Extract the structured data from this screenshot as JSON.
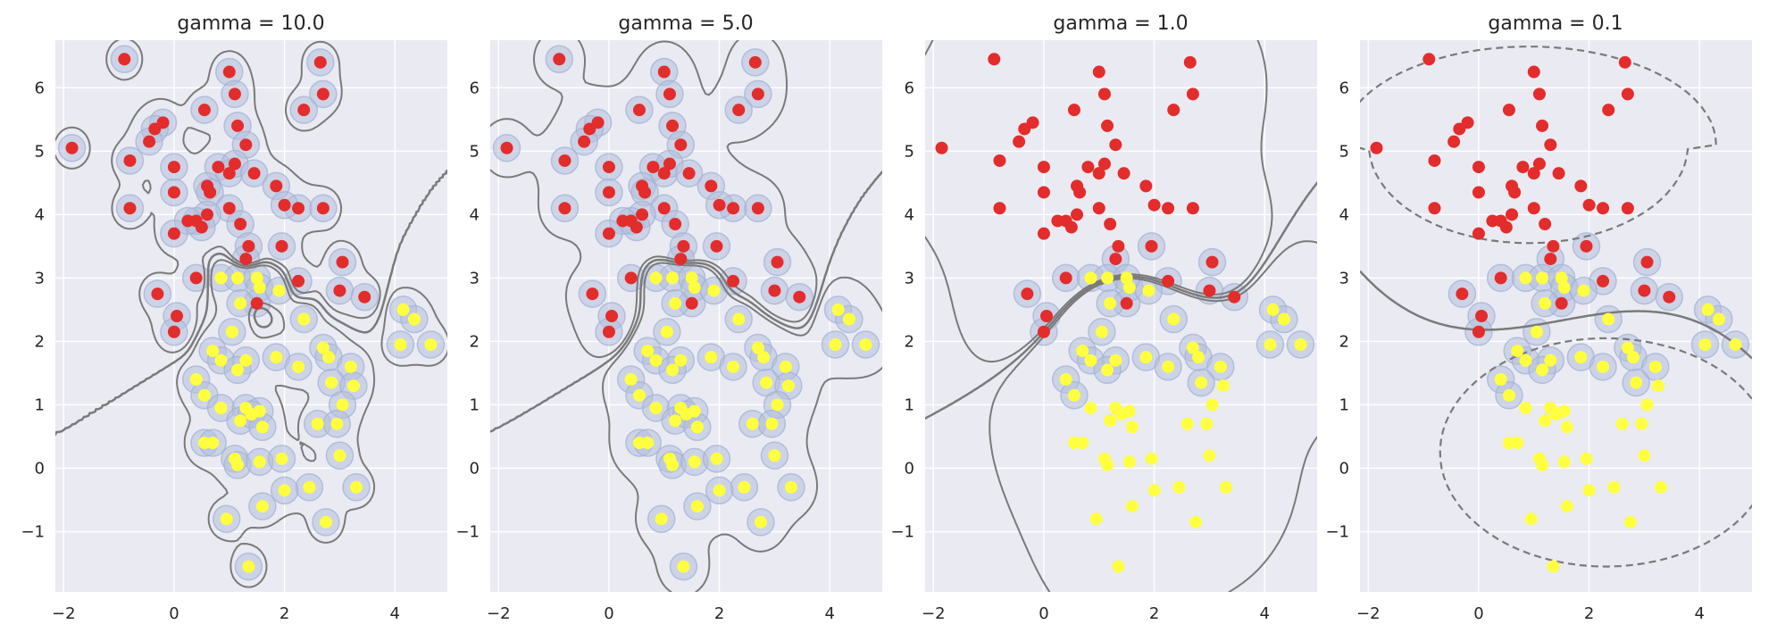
{
  "colors": {
    "axes_bg": "#eaeaf2",
    "grid": "#ffffff",
    "class_0": "#e32c2c",
    "class_1": "#ffff40",
    "support_vector_ring": "#b4c0dc",
    "boundary": "#7a7a7a",
    "text": "#262626"
  },
  "chart_data": [
    {
      "type": "scatter",
      "title": "gamma = 10.0",
      "xlim": [
        -2.15,
        4.95
      ],
      "ylim": [
        -1.95,
        6.75
      ],
      "xticks": [
        -2,
        0,
        2,
        4
      ],
      "yticks": [
        -1,
        0,
        1,
        2,
        3,
        4,
        5,
        6
      ],
      "grid": true,
      "support_vectors": "all points",
      "decision_boundary": "highly irregular solid curve",
      "margins": "dashed, tightly wrapped around individual points"
    },
    {
      "type": "scatter",
      "title": "gamma = 5.0",
      "xlim": [
        -2.15,
        4.95
      ],
      "ylim": [
        -1.95,
        6.75
      ],
      "xticks": [
        -2,
        0,
        2,
        4
      ],
      "yticks": [
        -1,
        0,
        1,
        2,
        3,
        4,
        5,
        6
      ],
      "grid": true,
      "support_vectors": "all points",
      "decision_boundary": "irregular solid curve",
      "margins": "dashed, short segments between neighbouring points"
    },
    {
      "type": "scatter",
      "title": "gamma = 1.0",
      "xlim": [
        -2.15,
        4.95
      ],
      "ylim": [
        -1.95,
        6.75
      ],
      "xticks": [
        -2,
        0,
        2,
        4
      ],
      "yticks": [
        -1,
        0,
        1,
        2,
        3,
        4,
        5,
        6
      ],
      "grid": true,
      "support_vectors": "points near the class boundary",
      "decision_boundary": "smooth S-shaped solid curve",
      "margins": "dashed, enclosing each class cloud"
    },
    {
      "type": "scatter",
      "title": "gamma = 0.1",
      "xlim": [
        -2.15,
        4.95
      ],
      "ylim": [
        -1.95,
        6.75
      ],
      "xticks": [
        -2,
        0,
        2,
        4
      ],
      "yticks": [
        -1,
        0,
        1,
        2,
        3,
        4,
        5,
        6
      ],
      "grid": true,
      "support_vectors": "points near the class boundary",
      "decision_boundary": "nearly straight solid curve",
      "margins": "dashed, two smooth loops around the classes"
    }
  ],
  "points": {
    "class_0": [
      [
        -0.9,
        6.45
      ],
      [
        1.0,
        6.25
      ],
      [
        2.65,
        6.4
      ],
      [
        1.1,
        5.9
      ],
      [
        2.7,
        5.9
      ],
      [
        0.55,
        5.65
      ],
      [
        2.35,
        5.65
      ],
      [
        -0.2,
        5.45
      ],
      [
        -0.35,
        5.35
      ],
      [
        -0.45,
        5.15
      ],
      [
        1.15,
        5.4
      ],
      [
        1.3,
        5.1
      ],
      [
        -1.85,
        5.05
      ],
      [
        -0.8,
        4.85
      ],
      [
        0.0,
        4.75
      ],
      [
        0.8,
        4.75
      ],
      [
        1.0,
        4.65
      ],
      [
        1.1,
        4.8
      ],
      [
        1.45,
        4.65
      ],
      [
        0.6,
        4.45
      ],
      [
        0.65,
        4.35
      ],
      [
        0.0,
        4.35
      ],
      [
        1.85,
        4.45
      ],
      [
        2.25,
        4.1
      ],
      [
        1.0,
        4.1
      ],
      [
        2.7,
        4.1
      ],
      [
        2.0,
        4.15
      ],
      [
        -0.8,
        4.1
      ],
      [
        0.6,
        4.0
      ],
      [
        0.4,
        3.9
      ],
      [
        0.5,
        3.8
      ],
      [
        0.25,
        3.9
      ],
      [
        1.2,
        3.85
      ],
      [
        0.0,
        3.7
      ],
      [
        1.35,
        3.5
      ],
      [
        1.95,
        3.5
      ],
      [
        1.3,
        3.3
      ],
      [
        3.05,
        3.25
      ],
      [
        0.4,
        3.0
      ],
      [
        2.25,
        2.95
      ],
      [
        3.0,
        2.8
      ],
      [
        3.45,
        2.7
      ],
      [
        -0.3,
        2.75
      ],
      [
        1.5,
        2.6
      ],
      [
        0.05,
        2.4
      ],
      [
        0.0,
        2.15
      ]
    ],
    "class_1": [
      [
        0.85,
        3.0
      ],
      [
        1.15,
        3.0
      ],
      [
        1.5,
        3.0
      ],
      [
        1.55,
        2.85
      ],
      [
        1.9,
        2.8
      ],
      [
        1.2,
        2.6
      ],
      [
        2.35,
        2.35
      ],
      [
        4.15,
        2.5
      ],
      [
        4.35,
        2.35
      ],
      [
        1.05,
        2.15
      ],
      [
        0.7,
        1.85
      ],
      [
        1.85,
        1.75
      ],
      [
        2.7,
        1.9
      ],
      [
        2.8,
        1.75
      ],
      [
        4.1,
        1.95
      ],
      [
        4.65,
        1.95
      ],
      [
        0.85,
        1.7
      ],
      [
        1.3,
        1.7
      ],
      [
        1.15,
        1.55
      ],
      [
        2.25,
        1.6
      ],
      [
        3.2,
        1.6
      ],
      [
        2.85,
        1.35
      ],
      [
        3.25,
        1.3
      ],
      [
        0.4,
        1.4
      ],
      [
        0.55,
        1.15
      ],
      [
        0.85,
        0.95
      ],
      [
        1.3,
        0.95
      ],
      [
        1.55,
        0.9
      ],
      [
        3.05,
        1.0
      ],
      [
        1.2,
        0.75
      ],
      [
        1.4,
        0.85
      ],
      [
        1.6,
        0.65
      ],
      [
        2.6,
        0.7
      ],
      [
        2.95,
        0.7
      ],
      [
        0.55,
        0.4
      ],
      [
        0.7,
        0.4
      ],
      [
        1.1,
        0.15
      ],
      [
        1.15,
        0.05
      ],
      [
        1.55,
        0.1
      ],
      [
        1.95,
        0.15
      ],
      [
        3.0,
        0.2
      ],
      [
        2.45,
        -0.3
      ],
      [
        2.0,
        -0.35
      ],
      [
        3.3,
        -0.3
      ],
      [
        1.6,
        -0.6
      ],
      [
        0.95,
        -0.8
      ],
      [
        2.75,
        -0.85
      ],
      [
        1.35,
        -1.55
      ]
    ]
  }
}
